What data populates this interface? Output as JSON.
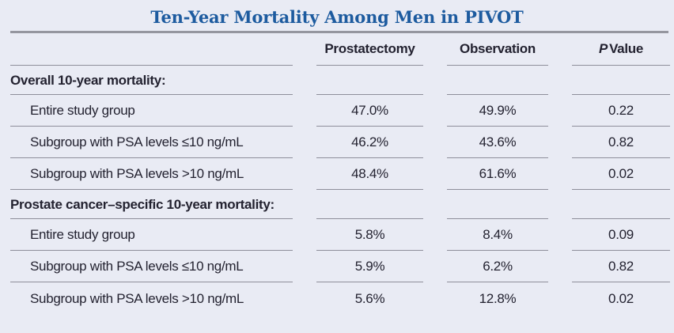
{
  "colors": {
    "background": "#e9ebf4",
    "title_blue": "#1d5b9f",
    "text": "#232230",
    "thick_rule_gray": "#95969f",
    "row_line_gray": "#8e8e9a"
  },
  "title": "Ten-Year Mortality Among Men in PIVOT",
  "table": {
    "header": {
      "label": "",
      "prostatectomy": "Prostatectomy",
      "observation": "Observation",
      "p_italic": "P",
      "p_rest": "Value"
    },
    "rows": [
      {
        "section": true,
        "label": "Overall 10-year mortality:",
        "prostatectomy": "",
        "observation": "",
        "p_value": ""
      },
      {
        "section": false,
        "label": "Entire study group",
        "prostatectomy": "47.0%",
        "observation": "49.9%",
        "p_value": "0.22"
      },
      {
        "section": false,
        "label": "Subgroup with PSA levels ≤10 ng/mL",
        "prostatectomy": "46.2%",
        "observation": "43.6%",
        "p_value": "0.82"
      },
      {
        "section": false,
        "label": "Subgroup with PSA levels >10 ng/mL",
        "prostatectomy": "48.4%",
        "observation": "61.6%",
        "p_value": "0.02"
      },
      {
        "section": true,
        "label": "Prostate cancer–specific 10-year mortality:",
        "prostatectomy": "",
        "observation": "",
        "p_value": ""
      },
      {
        "section": false,
        "label": "Entire study group",
        "prostatectomy": "5.8%",
        "observation": "8.4%",
        "p_value": "0.09"
      },
      {
        "section": false,
        "label": "Subgroup with PSA levels ≤10 ng/mL",
        "prostatectomy": "5.9%",
        "observation": "6.2%",
        "p_value": "0.82"
      },
      {
        "section": false,
        "label": "Subgroup with PSA levels >10 ng/mL",
        "prostatectomy": "5.6%",
        "observation": "12.8%",
        "p_value": "0.02"
      }
    ]
  },
  "chart_data": {
    "type": "table",
    "title": "Ten-Year Mortality Among Men in PIVOT",
    "columns": [
      "",
      "Prostatectomy",
      "Observation",
      "P Value"
    ],
    "rows": [
      [
        "Overall 10-year mortality:",
        "",
        "",
        ""
      ],
      [
        "Entire study group",
        "47.0%",
        "49.9%",
        "0.22"
      ],
      [
        "Subgroup with PSA levels ≤10 ng/mL",
        "46.2%",
        "43.6%",
        "0.82"
      ],
      [
        "Subgroup with PSA levels >10 ng/mL",
        "48.4%",
        "61.6%",
        "0.02"
      ],
      [
        "Prostate cancer–specific 10-year mortality:",
        "",
        "",
        ""
      ],
      [
        "Entire study group",
        "5.8%",
        "8.4%",
        "0.09"
      ],
      [
        "Subgroup with PSA levels ≤10 ng/mL",
        "5.9%",
        "6.2%",
        "0.82"
      ],
      [
        "Subgroup with PSA levels >10 ng/mL",
        "5.6%",
        "12.8%",
        "0.02"
      ]
    ],
    "section_row_indices": [
      0,
      4
    ],
    "layout": {
      "grid": "horizontal row rules only, per-column segments with gaps",
      "legend": "none"
    }
  }
}
